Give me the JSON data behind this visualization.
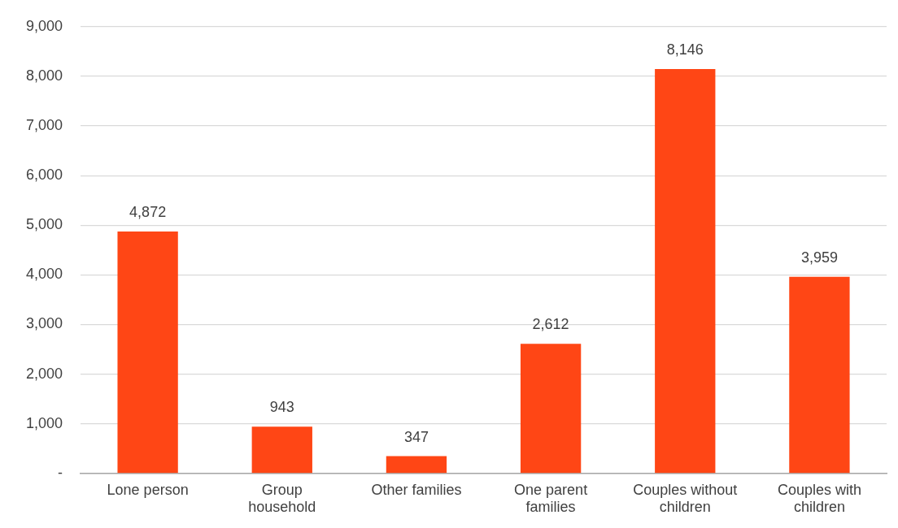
{
  "chart_data": {
    "type": "bar",
    "categories": [
      "Lone person",
      "Group\nhousehold",
      "Other families",
      "One parent\nfamilies",
      "Couples without\nchildren",
      "Couples with\nchildren"
    ],
    "values": [
      4872,
      943,
      347,
      2612,
      8146,
      3959
    ],
    "value_labels": [
      "4,872",
      "943",
      "347",
      "2,612",
      "8,146",
      "3,959"
    ],
    "color": "#ff4615",
    "ylim": [
      0,
      9000
    ],
    "yticks": [
      {
        "value": 0,
        "label": "-"
      },
      {
        "value": 1000,
        "label": "1,000"
      },
      {
        "value": 2000,
        "label": "2,000"
      },
      {
        "value": 3000,
        "label": "3,000"
      },
      {
        "value": 4000,
        "label": "4,000"
      },
      {
        "value": 5000,
        "label": "5,000"
      },
      {
        "value": 6000,
        "label": "6,000"
      },
      {
        "value": 7000,
        "label": "7,000"
      },
      {
        "value": 8000,
        "label": "8,000"
      },
      {
        "value": 9000,
        "label": "9,000"
      }
    ],
    "grid": "y",
    "legend": false
  }
}
